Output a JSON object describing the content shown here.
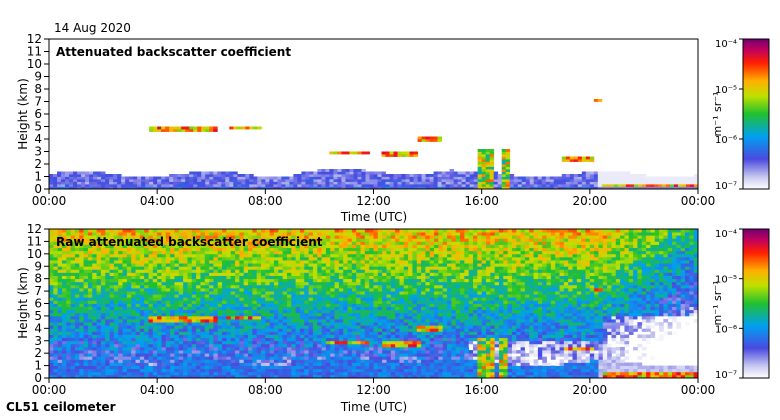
{
  "date_label": "14 Aug 2020",
  "footer_label": "CL51 ceilometer",
  "chart_data": [
    {
      "type": "heatmap",
      "title": "Attenuated backscatter coefficient",
      "xlabel": "Time (UTC)",
      "ylabel": "Height (km)",
      "x_tick_labels": [
        "00:00",
        "04:00",
        "08:00",
        "12:00",
        "16:00",
        "20:00",
        "00:00"
      ],
      "x_range_hours": [
        0,
        24
      ],
      "y_ticks": [
        0,
        1,
        2,
        3,
        4,
        5,
        6,
        7,
        8,
        9,
        10,
        11,
        12
      ],
      "ylim": [
        0,
        12
      ],
      "colorbar": {
        "label": "m⁻¹ sr⁻¹",
        "scale": "log",
        "range": [
          1e-07,
          0.0001
        ],
        "tick_labels": [
          "10⁻⁴",
          "10⁻⁵",
          "10⁻⁶",
          "10⁻⁷"
        ]
      },
      "features": {
        "boundary_layer_top_km": 1.2,
        "cloud_layers": [
          {
            "start_h": 3.7,
            "end_h": 6.2,
            "height_km": 4.8
          },
          {
            "start_h": 6.6,
            "end_h": 7.8,
            "height_km": 4.9
          },
          {
            "start_h": 10.3,
            "end_h": 11.8,
            "height_km": 2.9
          },
          {
            "start_h": 12.3,
            "end_h": 13.7,
            "height_km": 2.8
          },
          {
            "start_h": 13.6,
            "end_h": 14.5,
            "height_km": 4.0
          },
          {
            "start_h": 19.0,
            "end_h": 20.2,
            "height_km": 2.4
          },
          {
            "start_h": 20.2,
            "end_h": 20.5,
            "height_km": 7.1
          },
          {
            "start_h": 20.5,
            "end_h": 24.0,
            "height_km": 0.3
          }
        ],
        "precipitation_shafts": [
          {
            "start_h": 15.9,
            "end_h": 16.5
          },
          {
            "start_h": 16.7,
            "end_h": 17.0
          }
        ]
      }
    },
    {
      "type": "heatmap",
      "title": "Raw attenuated backscatter coefficient",
      "xlabel": "Time (UTC)",
      "ylabel": "Height (km)",
      "x_tick_labels": [
        "00:00",
        "04:00",
        "08:00",
        "12:00",
        "16:00",
        "20:00",
        "00:00"
      ],
      "x_range_hours": [
        0,
        24
      ],
      "y_ticks": [
        0,
        1,
        2,
        3,
        4,
        5,
        6,
        7,
        8,
        9,
        10,
        11,
        12
      ],
      "ylim": [
        0,
        12
      ],
      "colorbar": {
        "label": "m⁻¹ sr⁻¹",
        "scale": "log",
        "range": [
          1e-07,
          0.0001
        ],
        "tick_labels": [
          "10⁻⁴",
          "10⁻⁵",
          "10⁻⁶",
          "10⁻⁷"
        ]
      }
    }
  ]
}
